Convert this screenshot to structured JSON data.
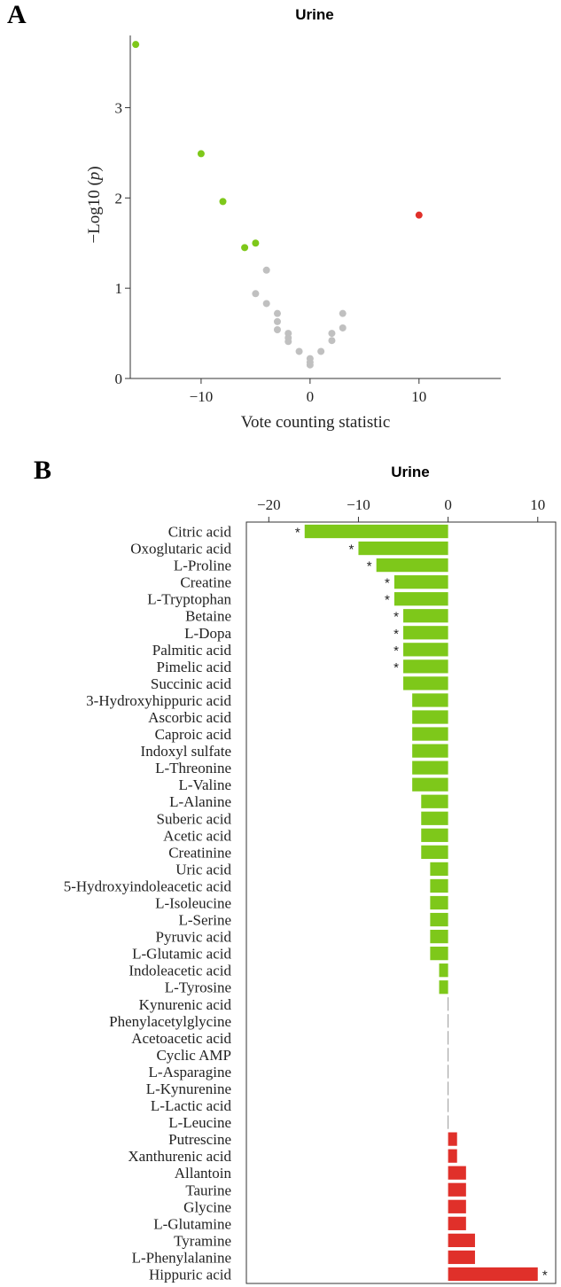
{
  "chart_data": [
    {
      "panel": "A",
      "type": "scatter",
      "title": "Urine",
      "xlabel": "Vote counting statistic",
      "ylabel_prefix": "−Log10 (",
      "ylabel_italic": "p",
      "ylabel_suffix": ")",
      "xlim": [
        -16.5,
        17.5
      ],
      "ylim": [
        0,
        3.8
      ],
      "xticks": [
        -10,
        0,
        10
      ],
      "xtick_labels": [
        "−10",
        "0",
        "10"
      ],
      "yticks": [
        0,
        1,
        2,
        3
      ],
      "ytick_labels": [
        "0",
        "1",
        "2",
        "3"
      ],
      "grid": false,
      "colors": {
        "down": "#7ec81a",
        "up": "#e0302a",
        "ns": "#c0c0c0"
      },
      "points": [
        {
          "x": -16,
          "y": 3.7,
          "group": "down"
        },
        {
          "x": -10,
          "y": 2.49,
          "group": "down"
        },
        {
          "x": -8,
          "y": 1.96,
          "group": "down"
        },
        {
          "x": -6,
          "y": 1.45,
          "group": "down"
        },
        {
          "x": -5,
          "y": 1.5,
          "group": "down"
        },
        {
          "x": 10,
          "y": 1.81,
          "group": "up"
        },
        {
          "x": -4,
          "y": 1.2,
          "group": "ns"
        },
        {
          "x": -5,
          "y": 0.94,
          "group": "ns"
        },
        {
          "x": -4,
          "y": 0.83,
          "group": "ns"
        },
        {
          "x": -3,
          "y": 0.72,
          "group": "ns"
        },
        {
          "x": -3,
          "y": 0.63,
          "group": "ns"
        },
        {
          "x": -3,
          "y": 0.54,
          "group": "ns"
        },
        {
          "x": -2,
          "y": 0.5,
          "group": "ns"
        },
        {
          "x": -2,
          "y": 0.45,
          "group": "ns"
        },
        {
          "x": -2,
          "y": 0.41,
          "group": "ns"
        },
        {
          "x": -1,
          "y": 0.3,
          "group": "ns"
        },
        {
          "x": 0,
          "y": 0.22,
          "group": "ns"
        },
        {
          "x": 0,
          "y": 0.18,
          "group": "ns"
        },
        {
          "x": 0,
          "y": 0.15,
          "group": "ns"
        },
        {
          "x": 1,
          "y": 0.3,
          "group": "ns"
        },
        {
          "x": 2,
          "y": 0.5,
          "group": "ns"
        },
        {
          "x": 2,
          "y": 0.42,
          "group": "ns"
        },
        {
          "x": 3,
          "y": 0.72,
          "group": "ns"
        },
        {
          "x": 3,
          "y": 0.56,
          "group": "ns"
        }
      ]
    },
    {
      "panel": "B",
      "type": "bar",
      "orientation": "horizontal",
      "title": "Urine",
      "xlim": [
        -22.5,
        12
      ],
      "xticks": [
        -20,
        -10,
        0,
        10
      ],
      "xtick_labels": [
        "−20",
        "−10",
        "0",
        "10"
      ],
      "xaxis_position": "top",
      "grid": false,
      "colors": {
        "negative": "#7ec81a",
        "positive": "#e0302a",
        "zero": "#999999"
      },
      "categories": [
        "Citric acid",
        "Oxoglutaric acid",
        "L-Proline",
        "Creatine",
        "L-Tryptophan",
        "Betaine",
        "L-Dopa",
        "Palmitic acid",
        "Pimelic acid",
        "Succinic acid",
        "3-Hydroxyhippuric acid",
        "Ascorbic acid",
        "Caproic acid",
        "Indoxyl sulfate",
        "L-Threonine",
        "L-Valine",
        "L-Alanine",
        "Suberic acid",
        "Acetic acid",
        "Creatinine",
        "Uric acid",
        "5-Hydroxyindoleacetic acid",
        "L-Isoleucine",
        "L-Serine",
        "Pyruvic acid",
        "L-Glutamic acid",
        "Indoleacetic acid",
        "L-Tyrosine",
        "Kynurenic acid",
        "Phenylacetylglycine",
        "Acetoacetic acid",
        "Cyclic AMP",
        "L-Asparagine",
        "L-Kynurenine",
        "L-Lactic acid",
        "L-Leucine",
        "Putrescine",
        "Xanthurenic acid",
        "Allantoin",
        "Taurine",
        "Glycine",
        "L-Glutamine",
        "Tyramine",
        "L-Phenylalanine",
        "Hippuric acid"
      ],
      "values": [
        -16,
        -10,
        -8,
        -6,
        -6,
        -5,
        -5,
        -5,
        -5,
        -5,
        -4,
        -4,
        -4,
        -4,
        -4,
        -4,
        -3,
        -3,
        -3,
        -3,
        -2,
        -2,
        -2,
        -2,
        -2,
        -2,
        -1,
        -1,
        0,
        0,
        0,
        0,
        0,
        0,
        0,
        0,
        1,
        1,
        2,
        2,
        2,
        2,
        3,
        3,
        10
      ],
      "significance_marker": "*",
      "significant": [
        true,
        true,
        true,
        true,
        true,
        true,
        true,
        true,
        true,
        false,
        false,
        false,
        false,
        false,
        false,
        false,
        false,
        false,
        false,
        false,
        false,
        false,
        false,
        false,
        false,
        false,
        false,
        false,
        false,
        false,
        false,
        false,
        false,
        false,
        false,
        false,
        false,
        false,
        false,
        false,
        false,
        false,
        false,
        false,
        true
      ]
    }
  ]
}
